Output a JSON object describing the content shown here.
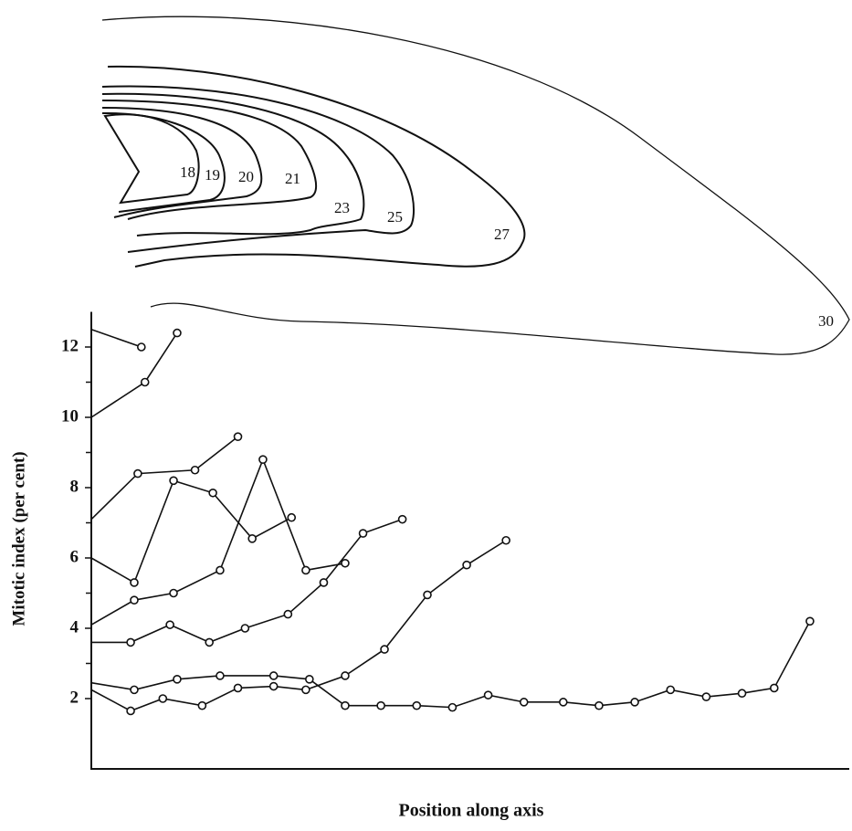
{
  "chart_data": {
    "type": "line",
    "y_label": "Mitotic index (per cent)",
    "x_label": "Position along axis",
    "annotations": [
      "18",
      "19",
      "20",
      "21",
      "23",
      "25",
      "27",
      "30"
    ],
    "xlim": [
      0,
      21.2
    ],
    "ylim": [
      0,
      13
    ],
    "yticks": [
      2,
      4,
      6,
      8,
      10,
      12
    ],
    "color": "#111111",
    "series": [
      {
        "x": [
          0,
          1.4
        ],
        "values": [
          12.5,
          12.0
        ]
      },
      {
        "x": [
          0,
          1.5,
          2.4
        ],
        "values": [
          10.0,
          11.0,
          12.4
        ]
      },
      {
        "x": [
          0,
          1.3,
          2.9,
          4.1
        ],
        "values": [
          7.1,
          8.4,
          8.5,
          9.45
        ]
      },
      {
        "x": [
          0,
          1.2,
          2.3,
          3.4,
          4.5,
          5.6
        ],
        "values": [
          6.0,
          5.3,
          8.2,
          7.85,
          6.55,
          7.15
        ]
      },
      {
        "x": [
          0,
          1.2,
          2.3,
          3.6,
          4.8,
          6.0,
          7.1
        ],
        "values": [
          4.1,
          4.8,
          5.0,
          5.65,
          8.8,
          5.65,
          5.85
        ]
      },
      {
        "x": [
          0,
          1.1,
          2.2,
          3.3,
          4.3,
          5.5,
          6.5,
          7.6,
          8.7
        ],
        "values": [
          3.6,
          3.6,
          4.1,
          3.6,
          4.0,
          4.4,
          5.3,
          6.7,
          7.1
        ]
      },
      {
        "x": [
          0,
          1.2,
          2.4,
          3.6,
          5.1,
          6.1,
          7.1,
          8.1,
          9.1,
          10.1,
          11.1,
          12.1,
          13.2,
          14.2,
          15.2,
          16.2,
          17.2,
          18.2,
          19.1,
          20.1
        ],
        "values": [
          2.45,
          2.25,
          2.55,
          2.65,
          2.65,
          2.55,
          1.8,
          1.8,
          1.8,
          1.75,
          2.1,
          1.9,
          1.9,
          1.8,
          1.9,
          2.25,
          2.05,
          2.15,
          2.3,
          4.2
        ]
      },
      {
        "x": [
          0,
          1.1,
          2.0,
          3.1,
          4.1,
          5.1,
          6.0,
          7.1,
          8.2,
          9.4,
          10.5,
          11.6
        ],
        "values": [
          2.25,
          1.65,
          2.0,
          1.8,
          2.3,
          2.35,
          2.25,
          2.65,
          3.4,
          4.95,
          5.8,
          6.5
        ]
      }
    ]
  }
}
